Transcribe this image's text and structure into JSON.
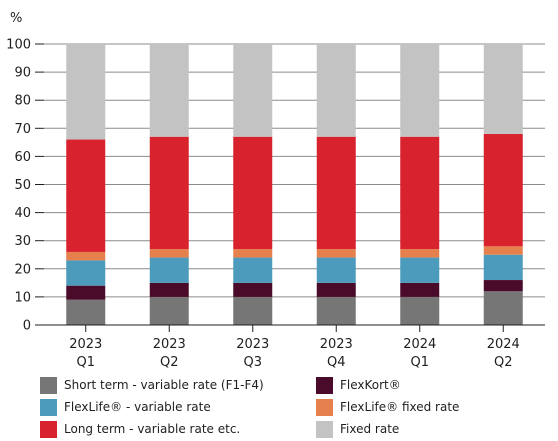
{
  "chart_data": {
    "type": "bar",
    "stacked": true,
    "ylabel": "%",
    "ylim": [
      0,
      100
    ],
    "yticks": [
      0,
      10,
      20,
      30,
      40,
      50,
      60,
      70,
      80,
      90,
      100
    ],
    "grid": true,
    "legend_position": "bottom",
    "categories": [
      {
        "year": "2023",
        "quarter": "Q1"
      },
      {
        "year": "2023",
        "quarter": "Q2"
      },
      {
        "year": "2023",
        "quarter": "Q3"
      },
      {
        "year": "2023",
        "quarter": "Q4"
      },
      {
        "year": "2024",
        "quarter": "Q1"
      },
      {
        "year": "2024",
        "quarter": "Q2"
      }
    ],
    "series": [
      {
        "name": "Short term - variable rate (F1-F4)",
        "color": "#767676",
        "values": [
          9,
          10,
          10,
          10,
          10,
          12
        ]
      },
      {
        "name": "FlexKort®",
        "color": "#4a0a2a",
        "values": [
          5,
          5,
          5,
          5,
          5,
          4
        ]
      },
      {
        "name": "FlexLife® - variable rate",
        "color": "#4c9bbd",
        "values": [
          9,
          9,
          9,
          9,
          9,
          9
        ]
      },
      {
        "name": "FlexLife® fixed rate",
        "color": "#e6804d",
        "values": [
          3,
          3,
          3,
          3,
          3,
          3
        ]
      },
      {
        "name": "Long term - variable rate etc.",
        "color": "#d8222e",
        "values": [
          40,
          40,
          40,
          40,
          40,
          40
        ]
      },
      {
        "name": "Fixed rate",
        "color": "#c3c3c3",
        "values": [
          34,
          33,
          33,
          33,
          33,
          32
        ]
      }
    ],
    "legend_order": [
      0,
      1,
      2,
      3,
      4,
      5
    ]
  }
}
